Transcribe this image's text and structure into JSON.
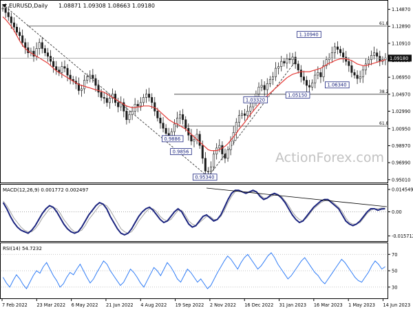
{
  "header": {
    "icon": "triangle-down-icon",
    "symbol_label": "EURUSD,Daily",
    "ohlc": "1.08871 1.09308 1.08663 1.09180"
  },
  "watermark": "ActionForex.com",
  "colors": {
    "price": "#1a1a1a",
    "ma": "#e53935",
    "macd": "#1a237e",
    "signal": "#a0a0a0",
    "rsi": "#2f7cf6",
    "fib": "#333333",
    "box_border": "#1a237e",
    "box_text": "#1a237e",
    "current_bg": "#111111",
    "watermark": "#c2c2c2"
  },
  "chart_data": [
    {
      "type": "candlestick",
      "title": "EURUSD,Daily",
      "ylim": [
        0.9475,
        1.158
      ],
      "yticks": [
        "1.14870",
        "1.12890",
        "1.10910",
        "1.08930",
        "1.06950",
        "1.04970",
        "1.02990",
        "1.00950",
        "0.98970",
        "0.96990",
        "0.95010"
      ],
      "current_price": "1.09180",
      "price_labels": [
        {
          "text": "0.95340",
          "price": 0.9534
        },
        {
          "text": "0.9886",
          "price": 0.9886
        },
        {
          "text": "0.9856",
          "price": 0.9856
        },
        {
          "text": "1.03320",
          "price": 1.0332
        },
        {
          "text": "1.10940",
          "price": 1.1094
        },
        {
          "text": "1.05150",
          "price": 1.0515
        },
        {
          "text": "1.06340",
          "price": 1.0634
        }
      ],
      "fib_levels": [
        {
          "label": "61.8",
          "price": 1.1292
        },
        {
          "label": "38.2",
          "price": 1.0497
        },
        {
          "label": "61.8",
          "price": 1.0126
        }
      ],
      "close_series": [
        1.15,
        1.145,
        1.14,
        1.133,
        1.128,
        1.122,
        1.118,
        1.11,
        1.104,
        1.098,
        1.1,
        1.094,
        1.103,
        1.11,
        1.103,
        1.098,
        1.094,
        1.088,
        1.082,
        1.078,
        1.075,
        1.082,
        1.08,
        1.072,
        1.067,
        1.065,
        1.062,
        1.054,
        1.056,
        1.066,
        1.07,
        1.072,
        1.068,
        1.06,
        1.052,
        1.046,
        1.045,
        1.04,
        1.045,
        1.05,
        1.04,
        1.035,
        1.04,
        1.03,
        1.02,
        1.026,
        1.03,
        1.038,
        1.036,
        1.04,
        1.046,
        1.05,
        1.046,
        1.04,
        1.03,
        1.022,
        1.016,
        1.01,
        1.004,
        1.0,
        1.006,
        1.015,
        1.022,
        1.026,
        1.02,
        1.01,
        1.002,
        0.995,
        0.997,
        1.003,
        0.99,
        0.975,
        0.96,
        0.96,
        0.965,
        0.98,
        0.987,
        0.99,
        0.98,
        0.975,
        0.985,
        0.995,
        1.005,
        1.017,
        1.025,
        1.027,
        1.025,
        1.03,
        1.035,
        1.04,
        1.05,
        1.058,
        1.06,
        1.055,
        1.062,
        1.067,
        1.07,
        1.08,
        1.082,
        1.088,
        1.086,
        1.091,
        1.09,
        1.093,
        1.085,
        1.078,
        1.07,
        1.066,
        1.06,
        1.058,
        1.063,
        1.072,
        1.075,
        1.07,
        1.083,
        1.09,
        1.092,
        1.098,
        1.105,
        1.102,
        1.098,
        1.093,
        1.088,
        1.083,
        1.075,
        1.072,
        1.068,
        1.07,
        1.078,
        1.085,
        1.09,
        1.095,
        1.098,
        1.094,
        1.088,
        1.09,
        1.092
      ],
      "ma_series": [
        1.14,
        1.137,
        1.133,
        1.129,
        1.124,
        1.118,
        1.112,
        1.107,
        1.103,
        1.1,
        1.098,
        1.096,
        1.094,
        1.092,
        1.09,
        1.088,
        1.086,
        1.083,
        1.08,
        1.077,
        1.075,
        1.073,
        1.071,
        1.069,
        1.067,
        1.065,
        1.063,
        1.061,
        1.06,
        1.059,
        1.058,
        1.057,
        1.056,
        1.055,
        1.054,
        1.053,
        1.052,
        1.05,
        1.048,
        1.046,
        1.044,
        1.042,
        1.04,
        1.038,
        1.036,
        1.035,
        1.034,
        1.034,
        1.035,
        1.035,
        1.036,
        1.036,
        1.036,
        1.035,
        1.034,
        1.032,
        1.029,
        1.026,
        1.023,
        1.02,
        1.018,
        1.016,
        1.015,
        1.013,
        1.011,
        1.009,
        1.006,
        1.003,
        1.0,
        0.997,
        0.994,
        0.991,
        0.988,
        0.985,
        0.984,
        0.984,
        0.984,
        0.985,
        0.987,
        0.989,
        0.992,
        0.996,
        1.0,
        1.004,
        1.009,
        1.013,
        1.017,
        1.022,
        1.026,
        1.03,
        1.034,
        1.038,
        1.042,
        1.045,
        1.048,
        1.051,
        1.054,
        1.057,
        1.06,
        1.063,
        1.066,
        1.069,
        1.071,
        1.073,
        1.074,
        1.075,
        1.076,
        1.076,
        1.076,
        1.076,
        1.077,
        1.078,
        1.079,
        1.08,
        1.082,
        1.084,
        1.086,
        1.087,
        1.089,
        1.09,
        1.091,
        1.091,
        1.091,
        1.09,
        1.089,
        1.087,
        1.085,
        1.084,
        1.083,
        1.083,
        1.084,
        1.085,
        1.086,
        1.087,
        1.088,
        1.089,
        1.09
      ]
    },
    {
      "type": "line",
      "title": "MACD(12,26,9) 0.001772 0.002497",
      "ylim": [
        -0.0182,
        0.0168
      ],
      "yticks": [
        "0.014549",
        "0.00",
        "-0.015712"
      ],
      "macd_series": [
        0.006,
        0.002,
        -0.003,
        -0.007,
        -0.01,
        -0.012,
        -0.013,
        -0.014,
        -0.012,
        -0.009,
        -0.005,
        -0.001,
        0.002,
        0.004,
        0.003,
        0.0,
        -0.004,
        -0.008,
        -0.011,
        -0.013,
        -0.014,
        -0.013,
        -0.01,
        -0.006,
        -0.002,
        0.001,
        0.004,
        0.006,
        0.005,
        0.002,
        -0.003,
        -0.007,
        -0.011,
        -0.014,
        -0.015,
        -0.014,
        -0.011,
        -0.007,
        -0.003,
        0.0,
        0.002,
        0.003,
        0.001,
        -0.002,
        -0.005,
        -0.007,
        -0.006,
        -0.003,
        0.0,
        0.002,
        0.0,
        -0.004,
        -0.008,
        -0.01,
        -0.009,
        -0.006,
        -0.003,
        -0.002,
        -0.004,
        -0.006,
        -0.005,
        -0.002,
        0.003,
        0.008,
        0.012,
        0.014,
        0.014,
        0.013,
        0.012,
        0.013,
        0.014,
        0.013,
        0.01,
        0.008,
        0.009,
        0.011,
        0.012,
        0.011,
        0.009,
        0.006,
        0.002,
        -0.002,
        -0.005,
        -0.007,
        -0.006,
        -0.003,
        0.0,
        0.003,
        0.005,
        0.007,
        0.008,
        0.008,
        0.006,
        0.004,
        0.002,
        -0.002,
        -0.006,
        -0.008,
        -0.009,
        -0.008,
        -0.006,
        -0.003,
        0.0,
        0.002,
        0.002,
        0.001,
        0.0018,
        0.002
      ],
      "signal_series": [
        0.007,
        0.004,
        0.0,
        -0.004,
        -0.007,
        -0.01,
        -0.012,
        -0.013,
        -0.013,
        -0.011,
        -0.008,
        -0.004,
        -0.001,
        0.002,
        0.003,
        0.002,
        -0.001,
        -0.005,
        -0.008,
        -0.011,
        -0.013,
        -0.013,
        -0.012,
        -0.009,
        -0.005,
        -0.002,
        0.001,
        0.004,
        0.005,
        0.004,
        0.001,
        -0.003,
        -0.007,
        -0.011,
        -0.013,
        -0.014,
        -0.013,
        -0.01,
        -0.006,
        -0.003,
        0.0,
        0.002,
        0.002,
        0.0,
        -0.003,
        -0.005,
        -0.006,
        -0.005,
        -0.002,
        0.001,
        0.001,
        -0.002,
        -0.006,
        -0.008,
        -0.009,
        -0.007,
        -0.005,
        -0.003,
        -0.003,
        -0.005,
        -0.005,
        -0.003,
        0.001,
        0.006,
        0.01,
        0.013,
        0.014,
        0.013,
        0.013,
        0.013,
        0.013,
        0.013,
        0.011,
        0.009,
        0.009,
        0.01,
        0.011,
        0.011,
        0.01,
        0.007,
        0.004,
        0.0,
        -0.003,
        -0.005,
        -0.006,
        -0.004,
        -0.001,
        0.002,
        0.004,
        0.006,
        0.007,
        0.008,
        0.007,
        0.005,
        0.003,
        0.0,
        -0.004,
        -0.007,
        -0.008,
        -0.008,
        -0.007,
        -0.004,
        -0.001,
        0.001,
        0.002,
        0.002,
        0.0025,
        0.0025
      ]
    },
    {
      "type": "line",
      "title": "RSI(14) 54.7232",
      "ylim": [
        18,
        82
      ],
      "yticks": [
        "70",
        "50",
        "30"
      ],
      "rsi_series": [
        42,
        35,
        30,
        38,
        45,
        40,
        33,
        28,
        36,
        44,
        50,
        47,
        55,
        60,
        52,
        44,
        38,
        30,
        34,
        42,
        48,
        45,
        52,
        58,
        50,
        42,
        35,
        40,
        48,
        55,
        62,
        58,
        50,
        44,
        38,
        32,
        36,
        44,
        52,
        48,
        42,
        35,
        30,
        38,
        46,
        54,
        50,
        44,
        52,
        60,
        55,
        48,
        40,
        36,
        44,
        52,
        48,
        42,
        36,
        40,
        34,
        28,
        32,
        40,
        48,
        55,
        62,
        68,
        64,
        58,
        52,
        60,
        66,
        70,
        64,
        58,
        52,
        56,
        62,
        68,
        72,
        66,
        58,
        52,
        46,
        40,
        44,
        50,
        56,
        62,
        66,
        60,
        54,
        48,
        44,
        38,
        34,
        40,
        46,
        52,
        58,
        64,
        60,
        54,
        48,
        42,
        38,
        36,
        42,
        48,
        56,
        62,
        58,
        52,
        55
      ]
    },
    {
      "type": "table",
      "xticks": [
        "7 Feb 2022",
        "23 Mar 2022",
        "6 May 2022",
        "21 Jun 2022",
        "4 Aug 2022",
        "19 Sep 2022",
        "2 Nov 2022",
        "16 Dec 2022",
        "31 Jan 2023",
        "16 Mar 2023",
        "1 May 2023",
        "14 Jun 2023"
      ]
    }
  ]
}
